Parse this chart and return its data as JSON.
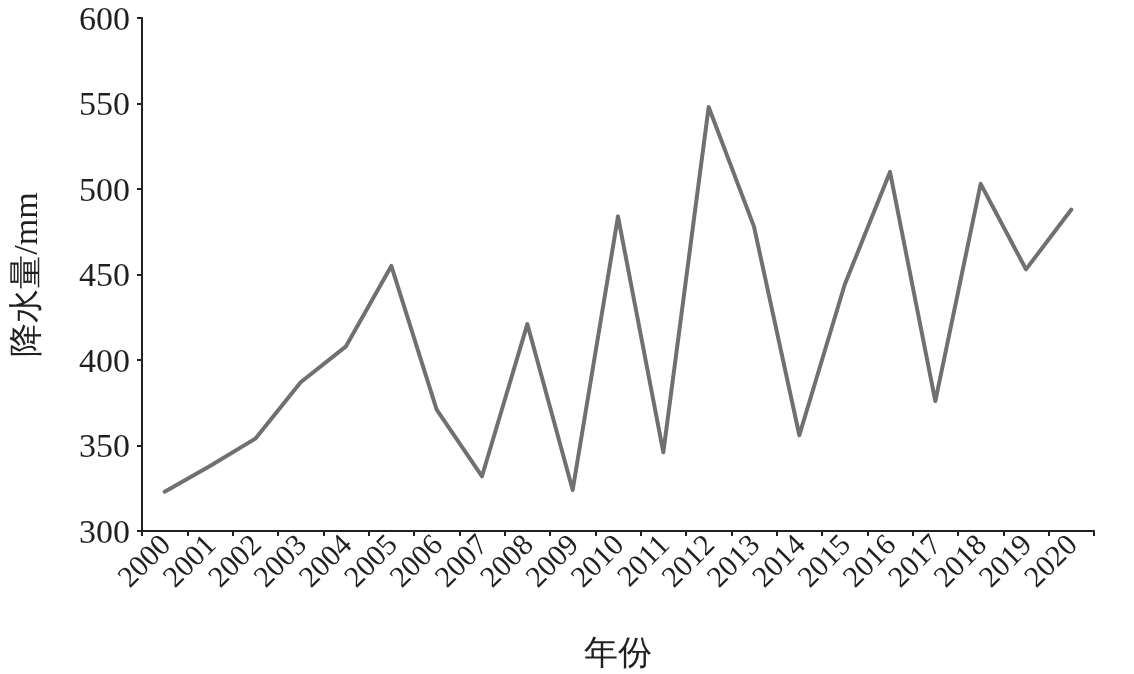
{
  "chart_data": {
    "type": "line",
    "xlabel": "年份",
    "ylabel": "降水量/mm",
    "categories": [
      "2000",
      "2001",
      "2002",
      "2003",
      "2004",
      "2005",
      "2006",
      "2007",
      "2008",
      "2009",
      "2010",
      "2011",
      "2012",
      "2013",
      "2014",
      "2015",
      "2016",
      "2017",
      "2018",
      "2019",
      "2020"
    ],
    "series": [
      {
        "color": "#707070",
        "values": [
          323,
          338,
          354,
          387,
          408,
          455,
          371,
          332,
          421,
          324,
          484,
          346,
          548,
          478,
          356,
          444,
          510,
          376,
          503,
          453,
          488
        ]
      }
    ],
    "ylim": [
      300,
      600
    ],
    "yticks": [
      300,
      350,
      400,
      450,
      500,
      550,
      600
    ],
    "grid": false,
    "marker": "none",
    "line_style": "solid"
  }
}
